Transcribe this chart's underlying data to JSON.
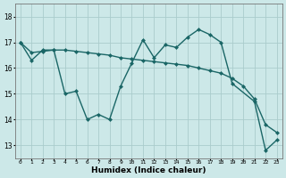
{
  "title": "",
  "xlabel": "Humidex (Indice chaleur)",
  "bg_color": "#cce8e8",
  "grid_color": "#aacccc",
  "line_color": "#1a6666",
  "marker": "D",
  "markersize": 2.5,
  "linewidth": 1.0,
  "xlim": [
    -0.5,
    23.5
  ],
  "ylim": [
    12.5,
    18.5
  ],
  "yticks": [
    13,
    14,
    15,
    16,
    17,
    18
  ],
  "xticks": [
    0,
    1,
    2,
    3,
    4,
    5,
    6,
    7,
    8,
    9,
    10,
    11,
    12,
    13,
    14,
    15,
    16,
    17,
    18,
    19,
    20,
    21,
    22,
    23
  ],
  "series1_x": [
    0,
    1,
    2,
    3,
    4,
    5,
    6,
    7,
    8,
    9,
    10,
    11,
    12,
    13,
    14,
    15,
    16,
    17,
    18,
    19,
    21,
    22,
    23
  ],
  "series1_y": [
    17.0,
    16.3,
    16.7,
    16.7,
    15.0,
    15.1,
    14.0,
    14.2,
    14.0,
    15.3,
    16.2,
    17.1,
    16.4,
    16.9,
    16.8,
    17.2,
    17.5,
    17.3,
    17.0,
    15.4,
    14.7,
    12.8,
    13.2
  ],
  "series2_x": [
    0,
    1,
    2,
    3,
    4,
    5,
    6,
    7,
    8,
    9,
    10,
    11,
    12,
    13,
    14,
    15,
    16,
    17,
    18,
    19,
    20,
    21,
    22,
    23
  ],
  "series2_y": [
    17.0,
    16.6,
    16.65,
    16.7,
    16.7,
    16.65,
    16.6,
    16.55,
    16.5,
    16.4,
    16.35,
    16.3,
    16.25,
    16.2,
    16.15,
    16.1,
    16.0,
    15.9,
    15.8,
    15.6,
    15.3,
    14.8,
    13.8,
    13.5
  ]
}
